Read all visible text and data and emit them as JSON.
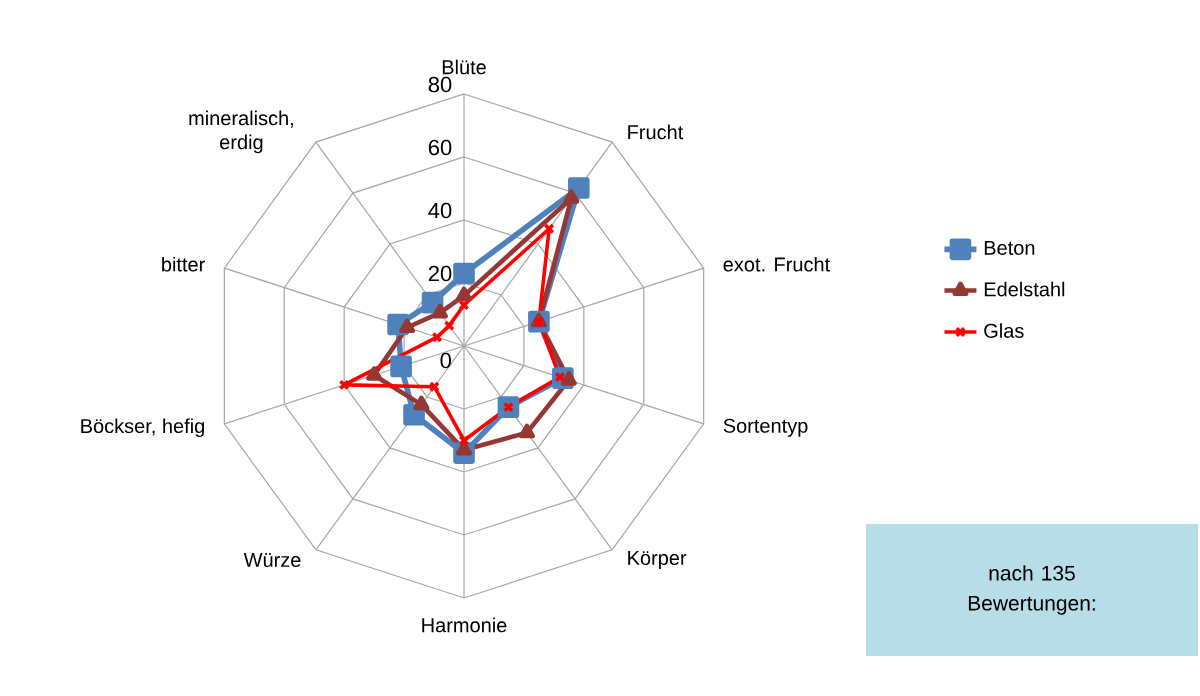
{
  "chart_data": {
    "type": "radar",
    "categories": [
      "Blüte",
      "Frucht",
      "exot. Frucht",
      "Sortentyp",
      "Körper",
      "Harmonie",
      "Würze",
      "Böckser, hefig",
      "bitter",
      "mineralisch, erdig"
    ],
    "series": [
      {
        "name": "Beton",
        "color": "#4f81bd",
        "marker": "square",
        "values": [
          23,
          62,
          25,
          33,
          24,
          34,
          27,
          21,
          22,
          17
        ]
      },
      {
        "name": "Edelstahl",
        "color": "#953735",
        "marker": "triangle",
        "values": [
          16,
          58,
          25,
          35,
          34,
          33,
          23,
          30,
          19,
          13
        ]
      },
      {
        "name": "Glas",
        "color": "#ff0000",
        "marker": "cross",
        "values": [
          13,
          46,
          25,
          32,
          24,
          30,
          16,
          40,
          9,
          8
        ]
      }
    ],
    "ylim": [
      0,
      80
    ],
    "yticks": [
      0,
      20,
      40,
      60,
      80
    ],
    "grid": true,
    "legend": "right",
    "line_style": "solid",
    "annotations": [
      "nach 135 Bewertungen:"
    ]
  }
}
